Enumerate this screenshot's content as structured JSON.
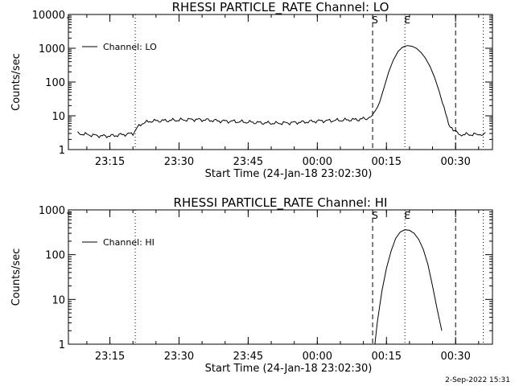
{
  "footer_timestamp": "2-Sep-2022 15:31",
  "chart_data": [
    {
      "type": "line",
      "title": "RHESSI PARTICLE_RATE Channel: LO",
      "xlabel": "Start Time (24-Jan-18 23:02:30)",
      "ylabel": "Counts/sec",
      "yscale": "log",
      "ylim": [
        1,
        10000
      ],
      "yticks": [
        1,
        10,
        100,
        1000,
        10000
      ],
      "ytick_labels": [
        "1",
        "10",
        "100",
        "1000",
        "10000"
      ],
      "xlim": [
        "23:06:00",
        "00:38:00"
      ],
      "xticks": [
        "23:15",
        "23:30",
        "23:45",
        "00:00",
        "00:15",
        "00:30"
      ],
      "legend": {
        "label": "Channel: LO",
        "position": "top-left"
      },
      "markers": [
        {
          "time": "23:20:30",
          "style": "dotted",
          "label": ""
        },
        {
          "time": "00:12:00",
          "style": "dashed",
          "label": "S"
        },
        {
          "time": "00:19:00",
          "style": "dotted",
          "label": "E"
        },
        {
          "time": "00:30:00",
          "style": "dashed",
          "label": ""
        },
        {
          "time": "00:36:00",
          "style": "dotted",
          "label": ""
        }
      ],
      "series": [
        {
          "name": "Channel: LO",
          "points": [
            [
              "23:08:00",
              3.0
            ],
            [
              "23:10:00",
              2.8
            ],
            [
              "23:12:00",
              2.6
            ],
            [
              "23:14:00",
              2.5
            ],
            [
              "23:16:00",
              2.6
            ],
            [
              "23:18:00",
              2.8
            ],
            [
              "23:20:00",
              3.0
            ],
            [
              "23:21:00",
              4.5
            ],
            [
              "23:22:00",
              6.0
            ],
            [
              "23:24:00",
              7.0
            ],
            [
              "23:27:00",
              7.2
            ],
            [
              "23:30:00",
              7.5
            ],
            [
              "23:33:00",
              7.8
            ],
            [
              "23:36:00",
              7.5
            ],
            [
              "23:39:00",
              7.0
            ],
            [
              "23:42:00",
              6.8
            ],
            [
              "23:45:00",
              6.5
            ],
            [
              "23:48:00",
              6.2
            ],
            [
              "23:51:00",
              6.0
            ],
            [
              "23:54:00",
              6.2
            ],
            [
              "23:57:00",
              6.5
            ],
            [
              "00:00:00",
              7.0
            ],
            [
              "00:03:00",
              7.2
            ],
            [
              "00:06:00",
              7.5
            ],
            [
              "00:09:00",
              7.8
            ],
            [
              "00:11:00",
              8.5
            ],
            [
              "00:12:30",
              12
            ],
            [
              "00:13:30",
              25
            ],
            [
              "00:14:30",
              70
            ],
            [
              "00:15:30",
              200
            ],
            [
              "00:16:30",
              450
            ],
            [
              "00:17:30",
              800
            ],
            [
              "00:18:30",
              1080
            ],
            [
              "00:19:30",
              1200
            ],
            [
              "00:20:30",
              1150
            ],
            [
              "00:21:30",
              1000
            ],
            [
              "00:22:30",
              750
            ],
            [
              "00:23:30",
              500
            ],
            [
              "00:24:30",
              280
            ],
            [
              "00:25:30",
              130
            ],
            [
              "00:26:30",
              50
            ],
            [
              "00:27:30",
              16
            ],
            [
              "00:28:30",
              6
            ],
            [
              "00:29:30",
              3.5
            ],
            [
              "00:31:00",
              2.8
            ],
            [
              "00:33:00",
              2.8
            ],
            [
              "00:35:00",
              2.8
            ],
            [
              "00:36:30",
              3.2
            ]
          ]
        }
      ]
    },
    {
      "type": "line",
      "title": "RHESSI PARTICLE_RATE Channel: HI",
      "xlabel": "Start Time (24-Jan-18 23:02:30)",
      "ylabel": "Counts/sec",
      "yscale": "log",
      "ylim": [
        1,
        1000
      ],
      "yticks": [
        1,
        10,
        100,
        1000
      ],
      "ytick_labels": [
        "1",
        "10",
        "100",
        "1000"
      ],
      "xlim": [
        "23:06:00",
        "00:38:00"
      ],
      "xticks": [
        "23:15",
        "23:30",
        "23:45",
        "00:00",
        "00:15",
        "00:30"
      ],
      "legend": {
        "label": "Channel: HI",
        "position": "top-left"
      },
      "markers": [
        {
          "time": "23:20:30",
          "style": "dotted",
          "label": ""
        },
        {
          "time": "00:12:00",
          "style": "dashed",
          "label": "S"
        },
        {
          "time": "00:19:00",
          "style": "dotted",
          "label": "E"
        },
        {
          "time": "00:30:00",
          "style": "dashed",
          "label": ""
        },
        {
          "time": "00:36:00",
          "style": "dotted",
          "label": ""
        }
      ],
      "series": [
        {
          "name": "Channel: HI",
          "points": [
            [
              "00:12:30",
              1.0
            ],
            [
              "00:13:00",
              3
            ],
            [
              "00:14:00",
              15
            ],
            [
              "00:15:00",
              50
            ],
            [
              "00:16:00",
              120
            ],
            [
              "00:17:00",
              230
            ],
            [
              "00:18:00",
              320
            ],
            [
              "00:19:00",
              360
            ],
            [
              "00:20:00",
              350
            ],
            [
              "00:21:00",
              300
            ],
            [
              "00:22:00",
              220
            ],
            [
              "00:23:00",
              130
            ],
            [
              "00:24:00",
              60
            ],
            [
              "00:25:00",
              20
            ],
            [
              "00:26:00",
              6
            ],
            [
              "00:27:00",
              2
            ]
          ]
        }
      ]
    }
  ]
}
